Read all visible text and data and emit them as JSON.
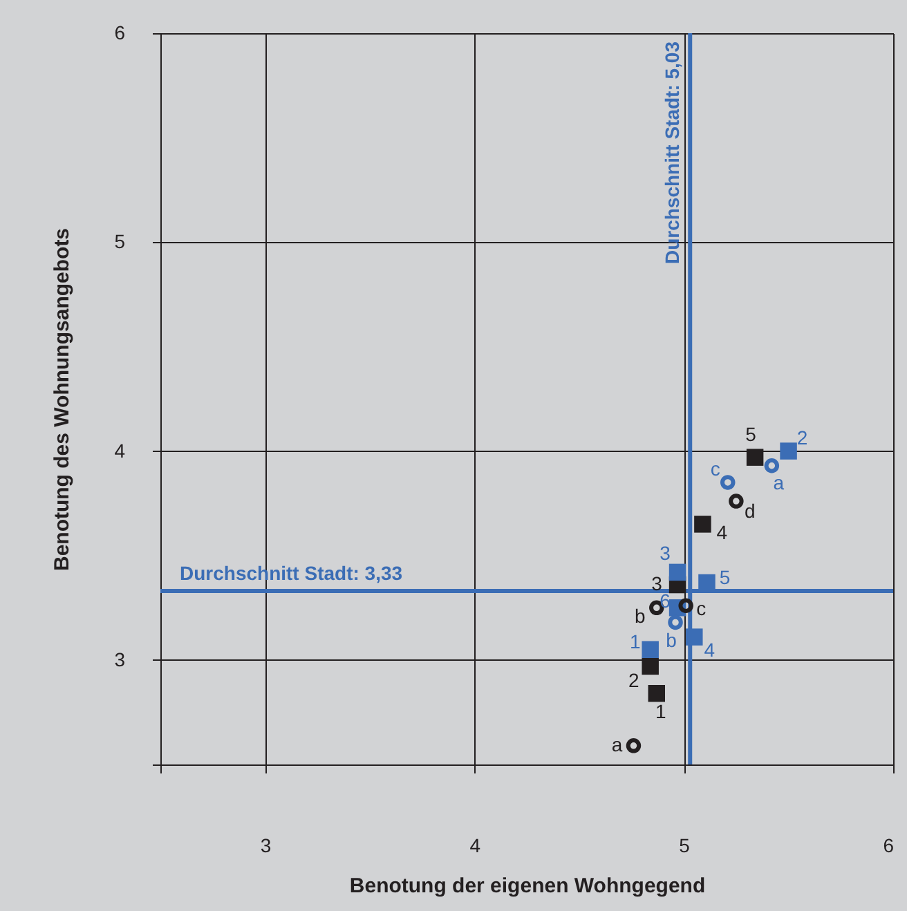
{
  "chart_data": {
    "type": "scatter",
    "xlabel": "Benotung der eigenen Wohngegend",
    "ylabel": "Benotung des Wohnungsangebots",
    "xlim": [
      2.5,
      6
    ],
    "ylim": [
      2.5,
      6
    ],
    "xticks": [
      {
        "value": 2.5,
        "label": null
      },
      3,
      4,
      5,
      6
    ],
    "yticks": [
      {
        "value": 2.5,
        "label": null
      },
      3,
      4,
      5,
      6
    ],
    "grid": true,
    "series": [
      {
        "color": "#231f20",
        "marker": "square",
        "x": [
          4.87,
          4.84,
          4.97,
          5.09,
          5.34
        ],
        "values": [
          2.84,
          2.97,
          3.36,
          3.65,
          3.97
        ]
      },
      {
        "color": "#3b6db5",
        "marker": "square",
        "x": [
          4.84,
          5.5,
          4.97,
          5.05,
          5.11,
          4.97
        ],
        "values": [
          3.05,
          4.0,
          3.42,
          3.11,
          3.37,
          3.25
        ]
      },
      {
        "color": "#231f20",
        "marker": "circle",
        "x": [
          4.76,
          4.87,
          5.01,
          5.25
        ],
        "values": [
          2.59,
          3.25,
          3.26,
          3.76
        ]
      },
      {
        "color": "#3b6db5",
        "marker": "circle",
        "x": [
          5.42,
          4.96,
          5.21
        ],
        "values": [
          3.93,
          3.18,
          3.85
        ]
      }
    ],
    "ref_lines": [
      {
        "axis": "x",
        "value": 5.03,
        "label": "Durchschnitt Stadt: 5,03",
        "color": "#3b6db5"
      },
      {
        "axis": "y",
        "value": 3.33,
        "label": "Durchschnitt Stadt: 3,33",
        "color": "#3b6db5"
      }
    ],
    "annotations": [
      {
        "text": "1",
        "x": 4.87,
        "y": 2.84
      },
      {
        "text": "2",
        "x": 4.84,
        "y": 2.97
      },
      {
        "text": "3",
        "x": 4.97,
        "y": 3.36
      },
      {
        "text": "4",
        "x": 5.09,
        "y": 3.65
      },
      {
        "text": "5",
        "x": 5.34,
        "y": 3.97
      },
      {
        "text": "1",
        "x": 4.84,
        "y": 3.05
      },
      {
        "text": "2",
        "x": 5.5,
        "y": 4.0
      },
      {
        "text": "3",
        "x": 4.97,
        "y": 3.42
      },
      {
        "text": "4",
        "x": 5.05,
        "y": 3.11
      },
      {
        "text": "5",
        "x": 5.11,
        "y": 3.37
      },
      {
        "text": "6",
        "x": 4.97,
        "y": 3.25
      },
      {
        "text": "a",
        "x": 4.76,
        "y": 2.59
      },
      {
        "text": "b",
        "x": 4.87,
        "y": 3.25
      },
      {
        "text": "c",
        "x": 5.01,
        "y": 3.26
      },
      {
        "text": "d",
        "x": 5.25,
        "y": 3.76
      },
      {
        "text": "a",
        "x": 5.42,
        "y": 3.93
      },
      {
        "text": "b",
        "x": 4.96,
        "y": 3.18
      },
      {
        "text": "c",
        "x": 5.21,
        "y": 3.85
      }
    ]
  }
}
